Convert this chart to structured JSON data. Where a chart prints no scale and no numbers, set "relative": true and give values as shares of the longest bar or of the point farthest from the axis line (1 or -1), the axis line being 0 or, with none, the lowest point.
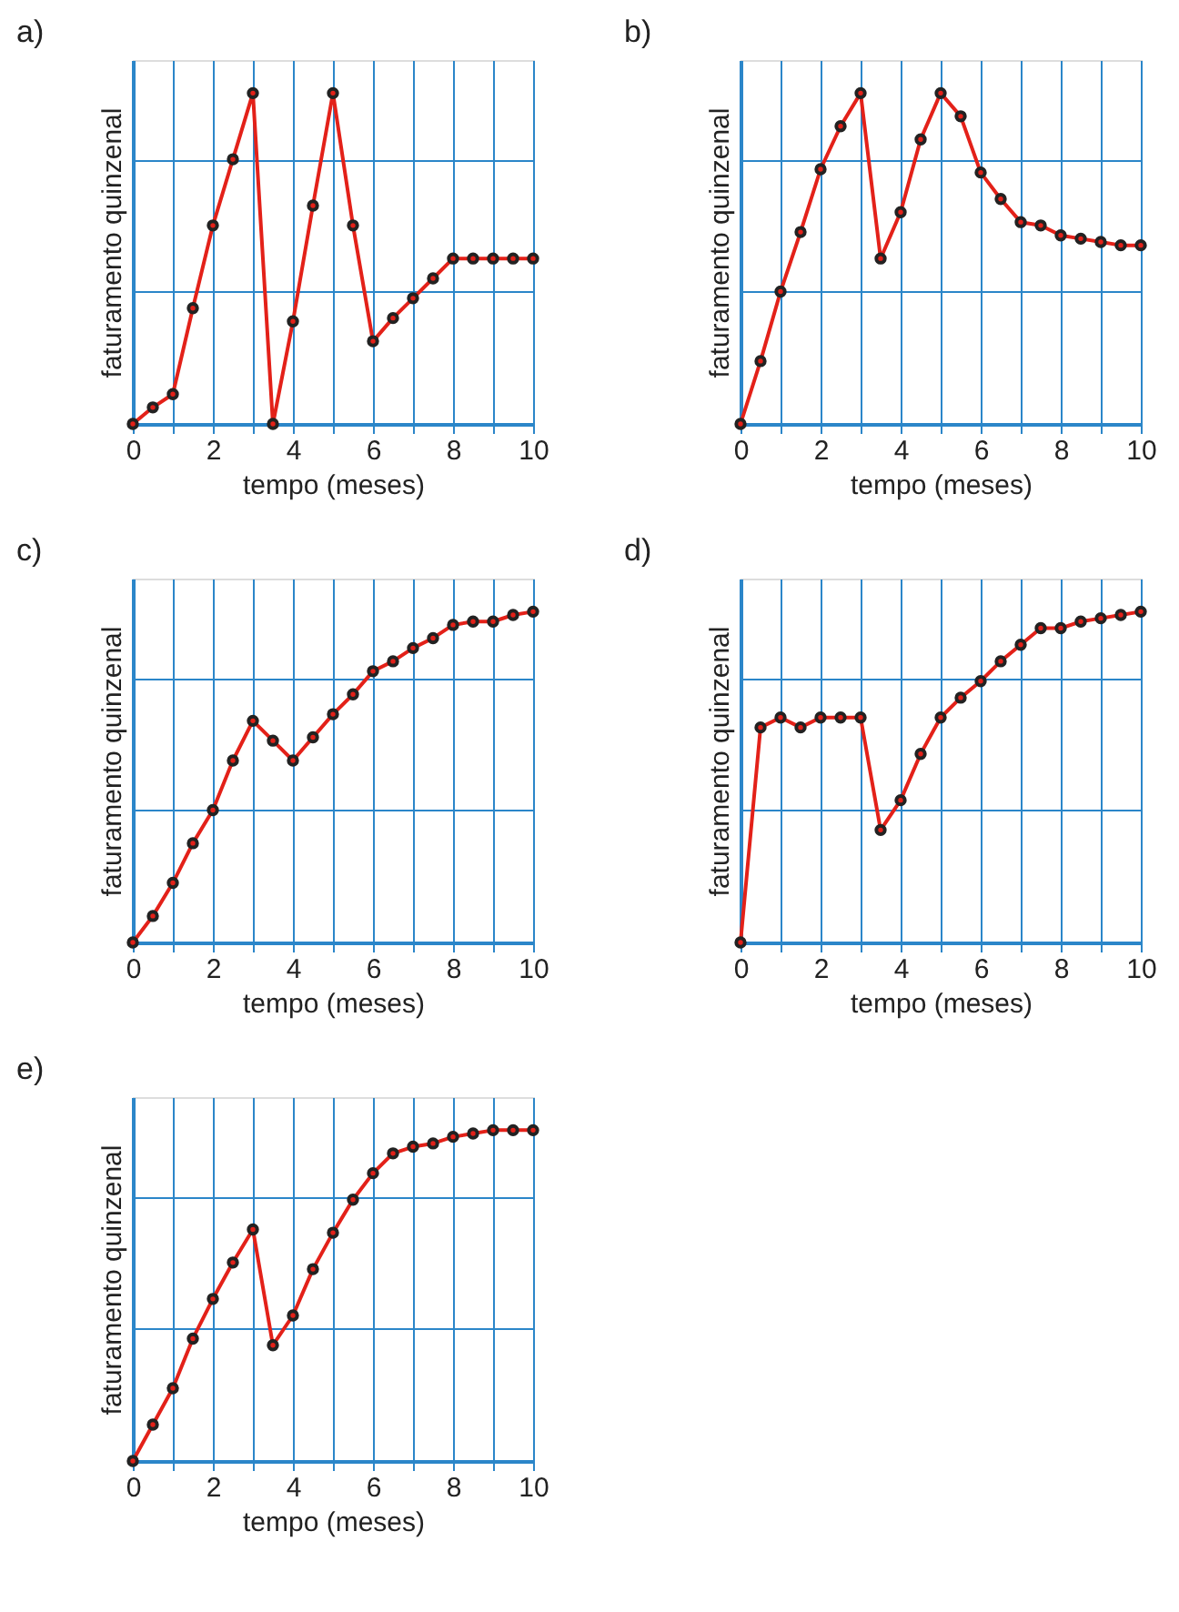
{
  "chart_data": [
    {
      "type": "line",
      "title": "a)",
      "xlabel": "tempo (meses)",
      "ylabel": "faturamento quinzenal",
      "relative": true,
      "grid": true,
      "marker": "circle",
      "line_style": "solid",
      "x": [
        0,
        0.5,
        1,
        1.5,
        2,
        2.5,
        3,
        3.5,
        4,
        4.5,
        5,
        5.5,
        6,
        6.5,
        7,
        7.5,
        8,
        8.5,
        9,
        9.5,
        10
      ],
      "xlim": [
        0,
        10
      ],
      "xticks": [
        0,
        {
          "value": 1,
          "label": null
        },
        2,
        {
          "value": 3,
          "label": null
        },
        4,
        {
          "value": 5,
          "label": null
        },
        6,
        {
          "value": 7,
          "label": null
        },
        8,
        {
          "value": 9,
          "label": null
        },
        10
      ],
      "series": [
        {
          "color": "#e32119",
          "values": [
            0,
            0.05,
            0.09,
            0.35,
            0.6,
            0.8,
            1,
            0,
            0.31,
            0.66,
            1,
            0.6,
            0.25,
            0.32,
            0.38,
            0.44,
            0.5,
            0.5,
            0.5,
            0.5,
            0.5
          ]
        }
      ]
    },
    {
      "type": "line",
      "title": "b)",
      "xlabel": "tempo (meses)",
      "ylabel": "faturamento quinzenal",
      "relative": true,
      "grid": true,
      "marker": "circle",
      "line_style": "solid",
      "x": [
        0,
        0.5,
        1,
        1.5,
        2,
        2.5,
        3,
        3.5,
        4,
        4.5,
        5,
        5.5,
        6,
        6.5,
        7,
        7.5,
        8,
        8.5,
        9,
        9.5,
        10
      ],
      "xlim": [
        0,
        10
      ],
      "xticks": [
        0,
        {
          "value": 1,
          "label": null
        },
        2,
        {
          "value": 3,
          "label": null
        },
        4,
        {
          "value": 5,
          "label": null
        },
        6,
        {
          "value": 7,
          "label": null
        },
        8,
        {
          "value": 9,
          "label": null
        },
        10
      ],
      "series": [
        {
          "color": "#e32119",
          "values": [
            0,
            0.19,
            0.4,
            0.58,
            0.77,
            0.9,
            1,
            0.5,
            0.64,
            0.86,
            1,
            0.93,
            0.76,
            0.68,
            0.61,
            0.6,
            0.57,
            0.56,
            0.55,
            0.54,
            0.54
          ]
        }
      ]
    },
    {
      "type": "line",
      "title": "c)",
      "xlabel": "tempo (meses)",
      "ylabel": "faturamento quinzenal",
      "relative": true,
      "grid": true,
      "marker": "circle",
      "line_style": "solid",
      "x": [
        0,
        0.5,
        1,
        1.5,
        2,
        2.5,
        3,
        3.5,
        4,
        4.5,
        5,
        5.5,
        6,
        6.5,
        7,
        7.5,
        8,
        8.5,
        9,
        9.5,
        10
      ],
      "xlim": [
        0,
        10
      ],
      "xticks": [
        0,
        {
          "value": 1,
          "label": null
        },
        2,
        {
          "value": 3,
          "label": null
        },
        4,
        {
          "value": 5,
          "label": null
        },
        6,
        {
          "value": 7,
          "label": null
        },
        8,
        {
          "value": 9,
          "label": null
        },
        10
      ],
      "series": [
        {
          "color": "#e32119",
          "values": [
            0,
            0.08,
            0.18,
            0.3,
            0.4,
            0.55,
            0.67,
            0.61,
            0.55,
            0.62,
            0.69,
            0.75,
            0.82,
            0.85,
            0.89,
            0.92,
            0.96,
            0.97,
            0.97,
            0.99,
            1
          ]
        }
      ]
    },
    {
      "type": "line",
      "title": "d)",
      "xlabel": "tempo (meses)",
      "ylabel": "faturamento quinzenal",
      "relative": true,
      "grid": true,
      "marker": "circle",
      "line_style": "solid",
      "x": [
        0,
        0.5,
        1,
        1.5,
        2,
        2.5,
        3,
        3.5,
        4,
        4.5,
        5,
        5.5,
        6,
        6.5,
        7,
        7.5,
        8,
        8.5,
        9,
        9.5,
        10
      ],
      "xlim": [
        0,
        10
      ],
      "xticks": [
        0,
        {
          "value": 1,
          "label": null
        },
        2,
        {
          "value": 3,
          "label": null
        },
        4,
        {
          "value": 5,
          "label": null
        },
        6,
        {
          "value": 7,
          "label": null
        },
        8,
        {
          "value": 9,
          "label": null
        },
        10
      ],
      "series": [
        {
          "color": "#e32119",
          "values": [
            0,
            0.65,
            0.68,
            0.65,
            0.68,
            0.68,
            0.68,
            0.34,
            0.43,
            0.57,
            0.68,
            0.74,
            0.79,
            0.85,
            0.9,
            0.95,
            0.95,
            0.97,
            0.98,
            0.99,
            1
          ]
        }
      ]
    },
    {
      "type": "line",
      "title": "e)",
      "xlabel": "tempo (meses)",
      "ylabel": "faturamento quinzenal",
      "relative": true,
      "grid": true,
      "marker": "circle",
      "line_style": "solid",
      "x": [
        0,
        0.5,
        1,
        1.5,
        2,
        2.5,
        3,
        3.5,
        4,
        4.5,
        5,
        5.5,
        6,
        6.5,
        7,
        7.5,
        8,
        8.5,
        9,
        9.5,
        10
      ],
      "xlim": [
        0,
        10
      ],
      "xticks": [
        0,
        {
          "value": 1,
          "label": null
        },
        2,
        {
          "value": 3,
          "label": null
        },
        4,
        {
          "value": 5,
          "label": null
        },
        6,
        {
          "value": 7,
          "label": null
        },
        8,
        {
          "value": 9,
          "label": null
        },
        10
      ],
      "series": [
        {
          "color": "#e32119",
          "values": [
            0,
            0.11,
            0.22,
            0.37,
            0.49,
            0.6,
            0.7,
            0.35,
            0.44,
            0.58,
            0.69,
            0.79,
            0.87,
            0.93,
            0.95,
            0.96,
            0.98,
            0.99,
            1,
            1,
            1
          ]
        }
      ]
    }
  ]
}
